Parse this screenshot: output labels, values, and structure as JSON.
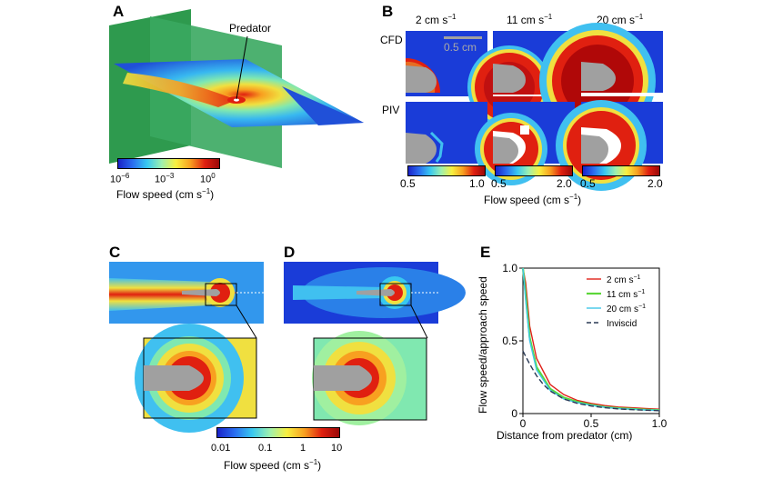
{
  "panels": {
    "A": {
      "label": "A",
      "annotation": "Predator",
      "colorbar": {
        "ticks": [
          "10",
          "10",
          "10"
        ],
        "exponents": [
          "−6",
          "−3",
          "0"
        ],
        "label_main": "Flow speed (cm s",
        "label_exp": "−1",
        "label_end": ")"
      }
    },
    "B": {
      "label": "B",
      "columns": [
        {
          "speed": "2 cm s",
          "exp": "−1"
        },
        {
          "speed": "11 cm s",
          "exp": "−1"
        },
        {
          "speed": "20 cm s",
          "exp": "−1"
        }
      ],
      "rows": [
        "CFD",
        "PIV"
      ],
      "scale_bar": "0.5 cm",
      "colorbars": [
        {
          "min": "0.5",
          "max": "1.0"
        },
        {
          "min": "0.5",
          "max": "2.0"
        },
        {
          "min": "0.5",
          "max": "2.0"
        }
      ],
      "axis_main": "Flow speed (cm s",
      "axis_exp": "−1",
      "axis_end": ")"
    },
    "C": {
      "label": "C"
    },
    "D": {
      "label": "D"
    },
    "CD_colorbar": {
      "ticks": [
        "0.01",
        "0.1",
        "1",
        "10"
      ],
      "label_main": "Flow speed (cm s",
      "label_exp": "−1",
      "label_end": ")"
    }
  },
  "chart_data": {
    "type": "line",
    "label": "E",
    "xlabel": "Distance from predator (cm)",
    "ylabel": "Flow speed/approach speed",
    "xlim": [
      0,
      1.0
    ],
    "ylim": [
      0,
      1.0
    ],
    "xticks": [
      "0",
      "0.5",
      "1.0"
    ],
    "yticks": [
      "0",
      "0.5",
      "1.0"
    ],
    "legend_position": "top-right",
    "series": [
      {
        "name": "2 cm s",
        "exp": "−1",
        "color": "#e0221a",
        "dash": false,
        "x": [
          0,
          0.02,
          0.05,
          0.1,
          0.2,
          0.3,
          0.4,
          0.5,
          0.6,
          0.7,
          0.8,
          0.9,
          1.0
        ],
        "y": [
          1.0,
          0.9,
          0.6,
          0.38,
          0.2,
          0.13,
          0.09,
          0.07,
          0.055,
          0.045,
          0.04,
          0.035,
          0.03
        ]
      },
      {
        "name": "11 cm s",
        "exp": "−1",
        "color": "#5cd63a",
        "dash": false,
        "x": [
          0,
          0.02,
          0.05,
          0.1,
          0.2,
          0.3,
          0.4,
          0.5,
          0.6,
          0.7,
          0.8,
          0.9,
          1.0
        ],
        "y": [
          1.0,
          0.82,
          0.52,
          0.32,
          0.17,
          0.11,
          0.08,
          0.06,
          0.045,
          0.037,
          0.032,
          0.027,
          0.024
        ]
      },
      {
        "name": "20 cm s",
        "exp": "−1",
        "color": "#40c8e8",
        "dash": false,
        "x": [
          0,
          0.02,
          0.05,
          0.1,
          0.2,
          0.3,
          0.4,
          0.5,
          0.6,
          0.7,
          0.8,
          0.9,
          1.0
        ],
        "y": [
          1.0,
          0.78,
          0.5,
          0.3,
          0.16,
          0.1,
          0.075,
          0.057,
          0.043,
          0.035,
          0.03,
          0.025,
          0.022
        ]
      },
      {
        "name": "Inviscid",
        "exp": "",
        "color": "#2a3a55",
        "dash": true,
        "x": [
          0,
          0.05,
          0.1,
          0.15,
          0.2,
          0.3,
          0.4,
          0.5,
          0.6,
          0.7,
          0.8,
          0.9,
          1.0
        ],
        "y": [
          0.43,
          0.34,
          0.26,
          0.2,
          0.155,
          0.1,
          0.07,
          0.052,
          0.04,
          0.032,
          0.027,
          0.023,
          0.02
        ]
      }
    ]
  },
  "colors": {
    "blue": "#1a22c8",
    "red": "#e02010",
    "darkred": "#9a0808",
    "green_plane": "#2e9a4e",
    "grey_body": "#a0a0a0"
  }
}
